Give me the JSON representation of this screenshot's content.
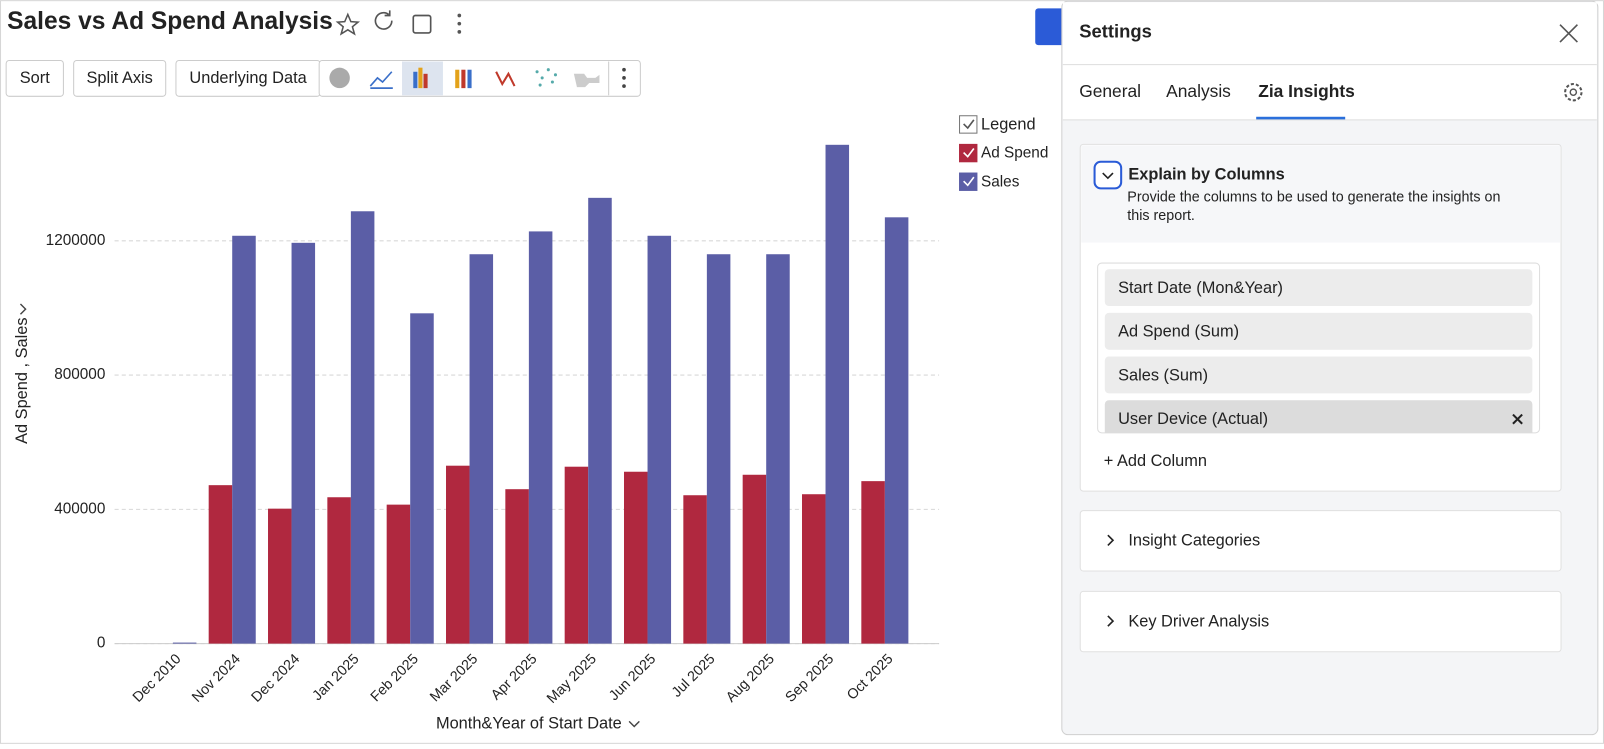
{
  "header": {
    "title": "Sales vs Ad Spend Analysis"
  },
  "toolbar": {
    "buttons": [
      "Sort",
      "Split Axis",
      "Underlying Data"
    ]
  },
  "chart_data": {
    "type": "bar",
    "x_label": "Month&Year of Start Date",
    "y_label": "Ad Spend , Sales",
    "legend_title": "Legend",
    "categories": [
      "Dec 2010",
      "Nov 2024",
      "Dec 2024",
      "Jan 2025",
      "Feb 2025",
      "Mar 2025",
      "Apr 2025",
      "May 2025",
      "Jun 2025",
      "Jul 2025",
      "Aug 2025",
      "Sep 2025",
      "Oct 2025"
    ],
    "series": [
      {
        "name": "Ad Spend",
        "color": "#b0283f",
        "values": [
          0,
          472000,
          402000,
          436000,
          414000,
          530000,
          460000,
          527000,
          512000,
          442000,
          503000,
          445000,
          484000
        ]
      },
      {
        "name": "Sales",
        "color": "#5b5ea6",
        "values": [
          3000,
          1215000,
          1194000,
          1288000,
          984000,
          1160000,
          1228000,
          1328000,
          1215000,
          1160000,
          1160000,
          1486000,
          1270000
        ]
      }
    ],
    "ylim": [
      0,
      1600000
    ],
    "yticks": [
      0,
      400000,
      800000,
      1200000
    ],
    "grid": true
  },
  "settings": {
    "title": "Settings",
    "tabs": [
      "General",
      "Analysis",
      "Zia Insights"
    ],
    "active_tab": 2,
    "explain": {
      "title": "Explain by Columns",
      "description": [
        "Provide the columns to be used to generate the insights on",
        "this report."
      ],
      "columns": [
        "Start Date (Mon&Year)",
        "Ad Spend (Sum)",
        "Sales (Sum)",
        "User Device (Actual)"
      ],
      "add_column": "+ Add Column"
    },
    "sections": [
      "Insight Categories",
      "Key Driver Analysis"
    ]
  }
}
